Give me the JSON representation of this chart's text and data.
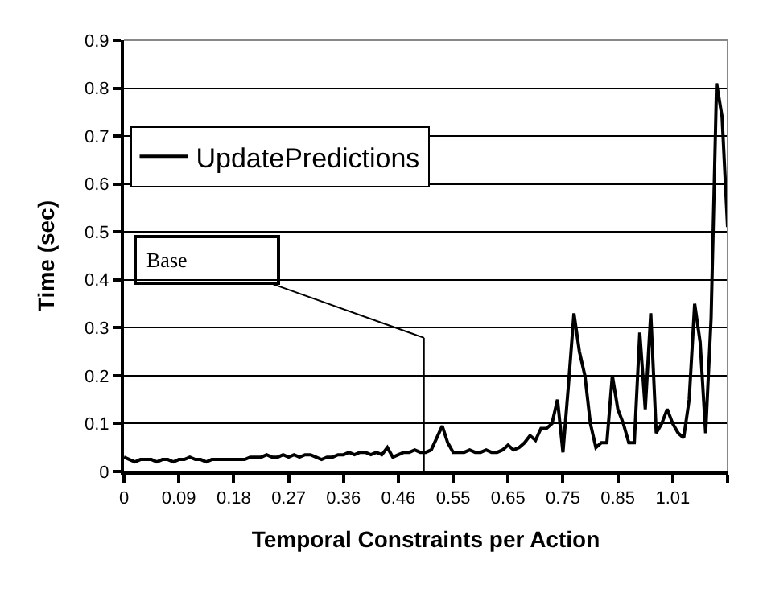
{
  "chart_data": {
    "type": "line",
    "xlabel": "Temporal Constraints per Action",
    "ylabel": "Time (sec)",
    "categories": [
      "0",
      null,
      null,
      null,
      null,
      null,
      null,
      null,
      null,
      null,
      "0.09",
      null,
      null,
      null,
      null,
      null,
      null,
      null,
      null,
      null,
      "0.18",
      null,
      null,
      null,
      null,
      null,
      null,
      null,
      null,
      null,
      "0.27",
      null,
      null,
      null,
      null,
      null,
      null,
      null,
      null,
      null,
      "0.36",
      null,
      null,
      null,
      null,
      null,
      null,
      null,
      null,
      null,
      "0.46",
      null,
      null,
      null,
      null,
      null,
      null,
      null,
      null,
      null,
      "0.55",
      null,
      null,
      null,
      null,
      null,
      null,
      null,
      null,
      null,
      "0.65",
      null,
      null,
      null,
      null,
      null,
      null,
      null,
      null,
      null,
      "0.75",
      null,
      null,
      null,
      null,
      null,
      null,
      null,
      null,
      null,
      "0.85",
      null,
      null,
      null,
      null,
      null,
      null,
      null,
      null,
      null,
      "1.01",
      null,
      null,
      null,
      null,
      null,
      null,
      null,
      null,
      null,
      null
    ],
    "series": [
      {
        "name": "UpdatePredictions",
        "color": "#000000",
        "values": [
          0.03,
          0.025,
          0.02,
          0.025,
          0.025,
          0.025,
          0.02,
          0.025,
          0.025,
          0.02,
          0.025,
          0.025,
          0.03,
          0.025,
          0.025,
          0.02,
          0.025,
          0.025,
          0.025,
          0.025,
          0.025,
          0.025,
          0.025,
          0.03,
          0.03,
          0.03,
          0.035,
          0.03,
          0.03,
          0.035,
          0.03,
          0.035,
          0.03,
          0.035,
          0.035,
          0.03,
          0.025,
          0.03,
          0.03,
          0.035,
          0.035,
          0.04,
          0.035,
          0.04,
          0.04,
          0.035,
          0.04,
          0.035,
          0.05,
          0.03,
          0.035,
          0.04,
          0.04,
          0.045,
          0.04,
          0.04,
          0.045,
          0.07,
          0.095,
          0.06,
          0.04,
          0.04,
          0.04,
          0.045,
          0.04,
          0.04,
          0.045,
          0.04,
          0.04,
          0.045,
          0.055,
          0.045,
          0.05,
          0.06,
          0.075,
          0.065,
          0.09,
          0.09,
          0.1,
          0.15,
          0.04,
          0.18,
          0.33,
          0.25,
          0.2,
          0.1,
          0.05,
          0.06,
          0.06,
          0.2,
          0.13,
          0.1,
          0.06,
          0.06,
          0.29,
          0.13,
          0.33,
          0.08,
          0.1,
          0.13,
          0.1,
          0.08,
          0.07,
          0.15,
          0.35,
          0.27,
          0.08,
          0.32,
          0.81,
          0.74,
          0.51
        ]
      }
    ],
    "ylim": [
      0,
      0.9
    ],
    "yticks": [
      0,
      0.1,
      0.2,
      0.3,
      0.4,
      0.5,
      0.6,
      0.7,
      0.8,
      0.9
    ],
    "grid": "y",
    "legend": "top left",
    "marker": "none",
    "line_style": "solid",
    "annotations": [
      "Base"
    ]
  }
}
